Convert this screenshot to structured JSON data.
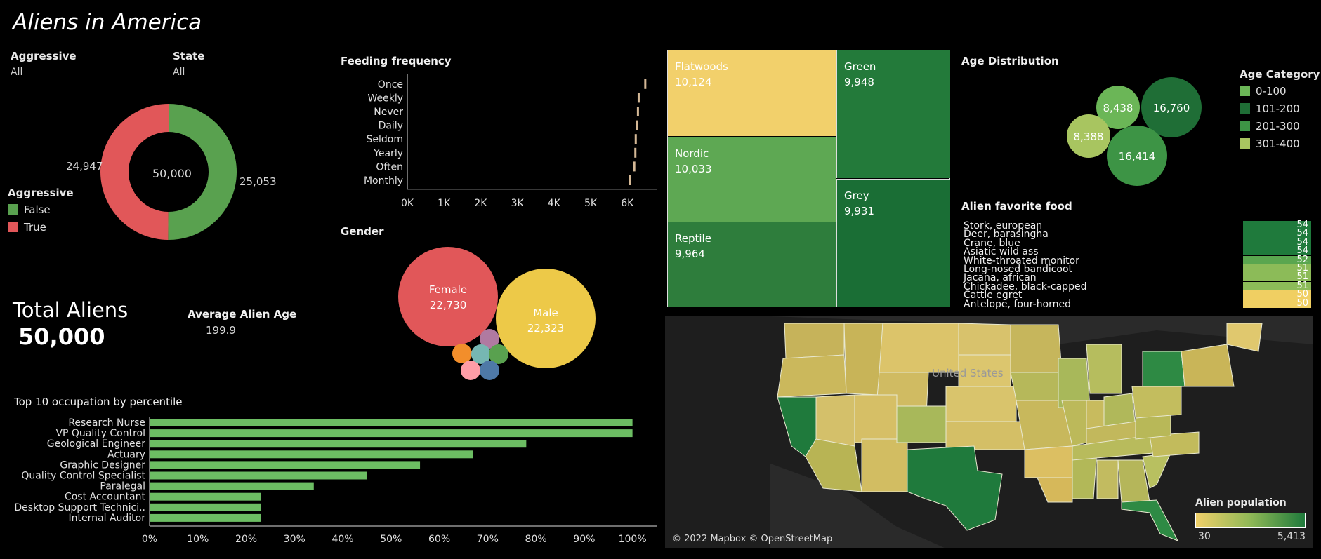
{
  "title": "Aliens in America",
  "filters": {
    "aggressive": {
      "label": "Aggressive",
      "value": "All"
    },
    "state": {
      "label": "State",
      "value": "All"
    }
  },
  "donut": {
    "center": "50,000",
    "false_label": "25,053",
    "true_label": "24,947",
    "false_value": 25053,
    "true_value": 24947,
    "false_color": "#59a14f",
    "true_color": "#e15759"
  },
  "aggressive_legend": {
    "title": "Aggressive",
    "items": [
      {
        "label": "False",
        "color": "#59a14f"
      },
      {
        "label": "True",
        "color": "#e15759"
      }
    ]
  },
  "total": {
    "label": "Total Aliens",
    "value": "50,000"
  },
  "avg_age": {
    "label": "Average Alien Age",
    "value": "199.9"
  },
  "feeding": {
    "title": "Feeding frequency",
    "categories": [
      "Once",
      "Weekly",
      "Never",
      "Daily",
      "Seldom",
      "Yearly",
      "Often",
      "Monthly"
    ],
    "values": [
      6500,
      6320,
      6300,
      6280,
      6240,
      6230,
      6200,
      6080
    ],
    "ticks": [
      "0K",
      "1K",
      "2K",
      "3K",
      "4K",
      "5K",
      "6K"
    ],
    "tick_values": [
      0,
      1000,
      2000,
      3000,
      4000,
      5000,
      6000
    ],
    "xmax": 6800,
    "color": "#d4b896"
  },
  "gender": {
    "title": "Gender",
    "bubbles": [
      {
        "label": "Female",
        "value": "22,730",
        "color": "#e15759"
      },
      {
        "label": "Male",
        "value": "22,323",
        "color": "#edc948"
      },
      {
        "label": "",
        "value": "",
        "color": "#b07aa1"
      },
      {
        "label": "",
        "value": "",
        "color": "#f28e2b"
      },
      {
        "label": "",
        "value": "",
        "color": "#76b7b2"
      },
      {
        "label": "",
        "value": "",
        "color": "#59a14f"
      },
      {
        "label": "",
        "value": "",
        "color": "#ff9da7"
      },
      {
        "label": "",
        "value": "",
        "color": "#4e79a7"
      }
    ]
  },
  "treemap": {
    "tiles": [
      {
        "label": "Flatwoods",
        "value": "10,124",
        "color": "#f2d06b"
      },
      {
        "label": "Nordic",
        "value": "10,033",
        "color": "#5ea853"
      },
      {
        "label": "Reptile",
        "value": "9,964",
        "color": "#2e7d3c"
      },
      {
        "label": "Green",
        "value": "9,948",
        "color": "#237a3a"
      },
      {
        "label": "Grey",
        "value": "9,931",
        "color": "#1a6e35"
      }
    ]
  },
  "age": {
    "title": "Age Distribution",
    "bubbles": [
      {
        "value": "16,760",
        "color": "#1f6e36"
      },
      {
        "value": "8,438",
        "color": "#6bb657"
      },
      {
        "value": "8,388",
        "color": "#a8c560"
      },
      {
        "value": "16,414",
        "color": "#3d9445"
      }
    ],
    "legend_title": "Age Category",
    "legend": [
      {
        "label": "0-100",
        "color": "#6bb657"
      },
      {
        "label": "101-200",
        "color": "#1f6e36"
      },
      {
        "label": "201-300",
        "color": "#3d9445"
      },
      {
        "label": "301-400",
        "color": "#a8c560"
      }
    ]
  },
  "food": {
    "title": "Alien favorite food",
    "items": [
      {
        "name": "Stork, european",
        "value": "54",
        "color": "#1f7a3c"
      },
      {
        "name": "Deer, barasingha",
        "value": "54",
        "color": "#1f7a3c"
      },
      {
        "name": "Crane, blue",
        "value": "54",
        "color": "#1f7a3c"
      },
      {
        "name": "Asiatic wild ass",
        "value": "54",
        "color": "#1f7a3c"
      },
      {
        "name": "White-throated monitor",
        "value": "52",
        "color": "#5aa64f"
      },
      {
        "name": "Long-nosed bandicoot",
        "value": "51",
        "color": "#8cbb58"
      },
      {
        "name": "Jacana, african",
        "value": "51",
        "color": "#8cbb58"
      },
      {
        "name": "Chickadee, black-capped",
        "value": "51",
        "color": "#8cbb58"
      },
      {
        "name": "Cattle egret",
        "value": "50",
        "color": "#f0cf62"
      },
      {
        "name": "Antelope, four-horned",
        "value": "50",
        "color": "#f0cf62"
      }
    ]
  },
  "occupation": {
    "title": "Top 10 occupation by percentile",
    "categories": [
      "Research Nurse",
      "VP Quality Control",
      "Geological Engineer",
      "Actuary",
      "Graphic Designer",
      "Quality Control Specialist",
      "Paralegal",
      "Cost Accountant",
      "Desktop Support Technici..",
      "Internal Auditor"
    ],
    "values": [
      100,
      100,
      78,
      67,
      56,
      45,
      34,
      23,
      23,
      23
    ],
    "ticks": [
      "0%",
      "10%",
      "20%",
      "30%",
      "40%",
      "50%",
      "60%",
      "70%",
      "80%",
      "90%",
      "100%"
    ],
    "tick_values": [
      0,
      10,
      20,
      30,
      40,
      50,
      60,
      70,
      80,
      90,
      100
    ],
    "xmax": 105,
    "color": "#6cbd63"
  },
  "map": {
    "country_label": "United States",
    "credit": "© 2022 Mapbox © OpenStreetMap",
    "legend_title": "Alien population",
    "legend_min": "30",
    "legend_max": "5,413"
  }
}
